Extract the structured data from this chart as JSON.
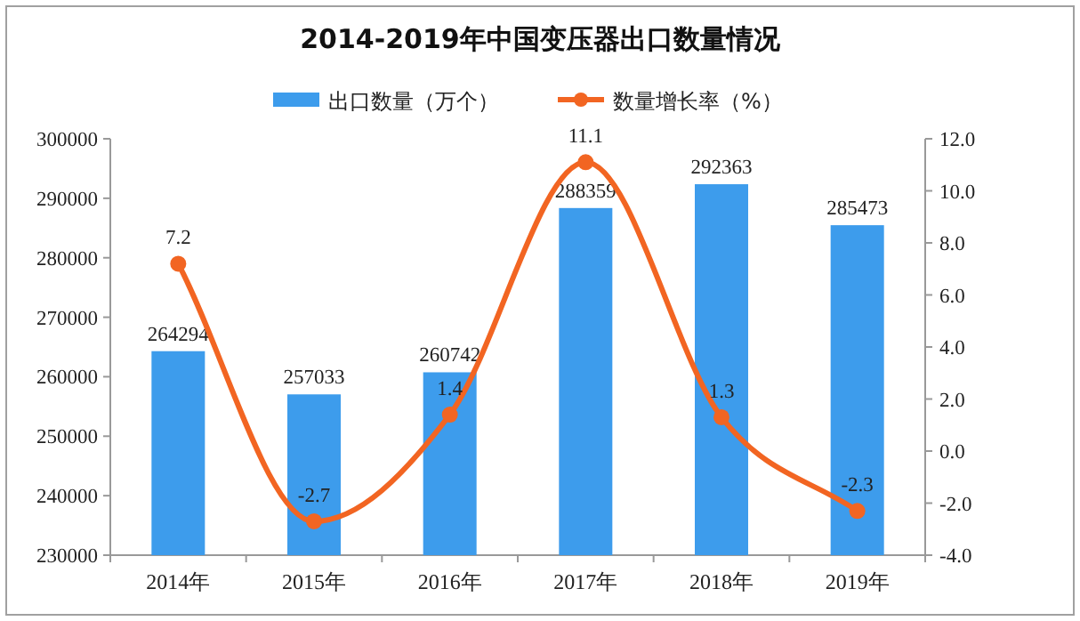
{
  "chart_data": {
    "type": "bar",
    "title": "2014-2019年中国变压器出口数量情况",
    "categories": [
      "2014年",
      "2015年",
      "2016年",
      "2017年",
      "2018年",
      "2019年"
    ],
    "series": [
      {
        "name": "出口数量（万个）",
        "color": "#3d9cec",
        "values": [
          264294,
          257033,
          260742,
          288359,
          292363,
          285473
        ]
      },
      {
        "name": "数量增长率（%）",
        "type": "line",
        "axis": "y2",
        "color": "#f26522",
        "marker": "circle",
        "values": [
          7.2,
          -2.7,
          1.4,
          11.1,
          1.3,
          -2.3
        ]
      }
    ],
    "ylim": [
      230000,
      300000
    ],
    "yticks": [
      230000,
      240000,
      250000,
      260000,
      270000,
      280000,
      290000,
      300000
    ],
    "y2lim": [
      -4,
      12
    ],
    "y2ticks": [
      {
        "value": -4,
        "label": "-4.0"
      },
      {
        "value": -2,
        "label": "-2.0"
      },
      {
        "value": 0,
        "label": "0.0"
      },
      {
        "value": 2,
        "label": "2.0"
      },
      {
        "value": 4,
        "label": "4.0"
      },
      {
        "value": 6,
        "label": "6.0"
      },
      {
        "value": 8,
        "label": "8.0"
      },
      {
        "value": 10,
        "label": "10.0"
      },
      {
        "value": 12,
        "label": "12.0"
      }
    ],
    "data_labels": true,
    "legend": "top",
    "grid": false
  }
}
